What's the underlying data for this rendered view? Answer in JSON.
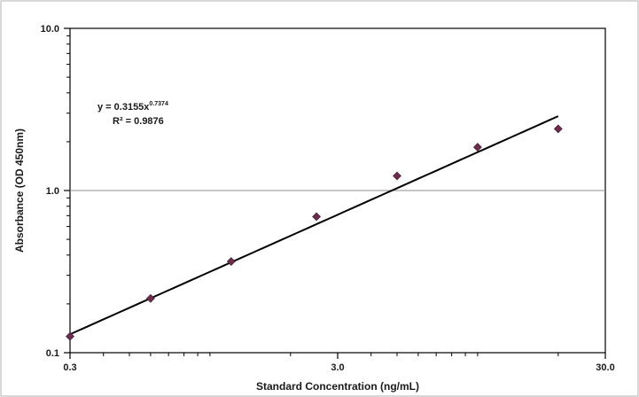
{
  "chart_data": {
    "type": "scatter",
    "xlabel": "Standard Concentration (ng/mL)",
    "ylabel": "Absorbance (OD 450nm)",
    "x_scale": "log",
    "y_scale": "log",
    "xlim": [
      0.3,
      30
    ],
    "ylim": [
      0.1,
      10
    ],
    "x_ticks": [
      "0.3",
      "3.0",
      "30.0"
    ],
    "y_ticks": [
      "0.1",
      "1.0",
      "10.0"
    ],
    "grid": "horizontal major gridline at 1.0",
    "series": [
      {
        "x": [
          0.3,
          0.6,
          1.2,
          2.5,
          5.0,
          10.0,
          20.0
        ],
        "y": [
          0.126,
          0.216,
          0.365,
          0.69,
          1.23,
          1.85,
          2.4
        ],
        "marker": "diamond",
        "color": "#6b2d4e"
      }
    ],
    "trendline": {
      "type": "power",
      "coefficient": 0.3155,
      "exponent": 0.7374,
      "x_range": [
        0.3,
        20.0
      ],
      "color": "#000000"
    },
    "annotations": {
      "equation_prefix": "y = 0.3155x",
      "equation_exponent": "0.7374",
      "r_squared": "R² = 0.9876"
    }
  }
}
